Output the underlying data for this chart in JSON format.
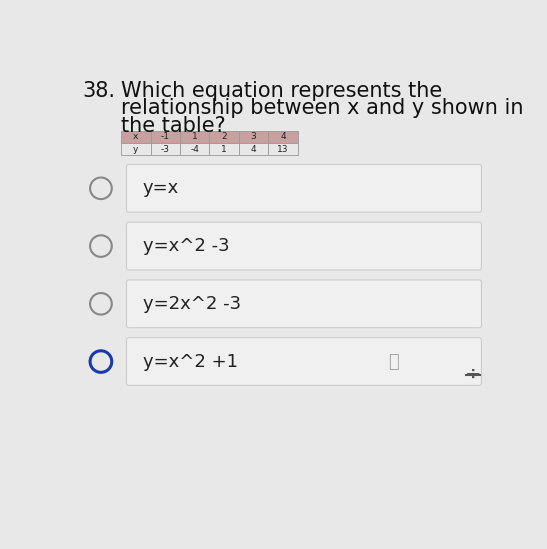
{
  "question_number": "38.",
  "question_text_line1": "Which equation represents the",
  "question_text_line2": "relationship between x and y shown in",
  "question_text_line3": "the table?",
  "table_x_label": "x",
  "table_y_label": "y",
  "table_x_values": [
    "-1",
    "1",
    "2",
    "3",
    "4"
  ],
  "table_y_values": [
    "-3",
    "-4",
    "1",
    "4",
    "13"
  ],
  "options": [
    "y=x",
    "y=x^2 -3",
    "y=2x^2 -3",
    "y=x^2 +1"
  ],
  "selected_index": 3,
  "page_bg": "#e8e8e8",
  "question_text_color": "#111111",
  "question_number_color": "#111111",
  "option_box_color": "#f0f0f0",
  "option_box_edge_color": "#cccccc",
  "option_text_color": "#222222",
  "circle_color": "#888888",
  "selected_circle_color": "#1a3aaa",
  "table_header_bg": "#c8a0a0",
  "table_data_bg": "#e8e8e8",
  "table_border_color": "#999999",
  "title_fontsize": 15,
  "option_fontsize": 13,
  "table_fontsize": 6.5
}
